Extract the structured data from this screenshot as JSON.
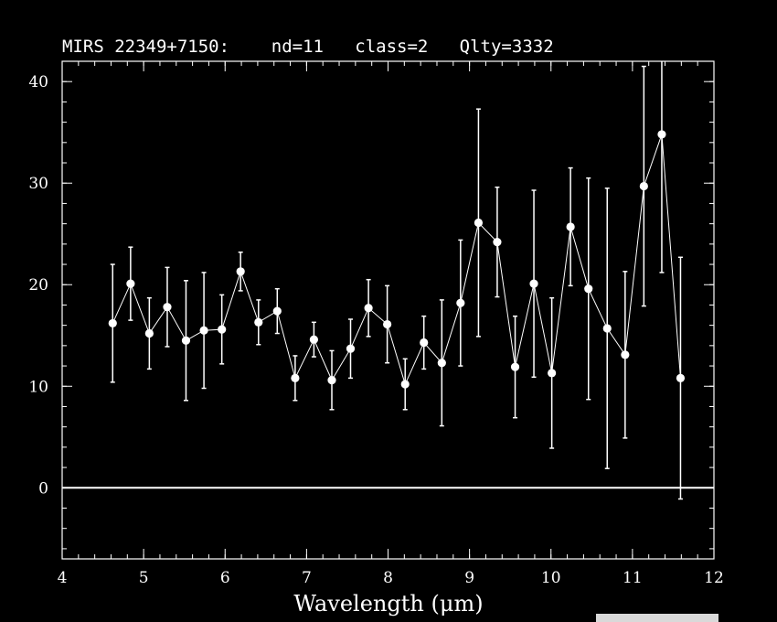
{
  "chart_data": {
    "type": "scatter",
    "title": "MIRS 22349+7150:    nd=11   class=2   Qlty=3332",
    "xlabel": "Wavelength (μm)",
    "ylabel": "",
    "xlim": [
      4,
      12
    ],
    "ylim": [
      -7,
      42
    ],
    "x_ticks": [
      4,
      5,
      6,
      7,
      8,
      9,
      10,
      11,
      12
    ],
    "y_ticks": [
      0,
      10,
      20,
      30,
      40
    ],
    "zero_line": 0,
    "grid": false,
    "legend": "none",
    "colors": {
      "background": "#000000",
      "foreground": "#ffffff"
    },
    "series": [
      {
        "x": [
          4.62,
          4.84,
          5.07,
          5.29,
          5.52,
          5.74,
          5.96,
          6.19,
          6.41,
          6.64,
          6.86,
          7.09,
          7.31,
          7.54,
          7.76,
          7.99,
          8.21,
          8.44,
          8.66,
          8.89,
          9.11,
          9.34,
          9.56,
          9.79,
          10.01,
          10.24,
          10.46,
          10.69,
          10.91,
          11.14,
          11.36,
          11.59
        ],
        "y": [
          16.2,
          20.1,
          15.2,
          17.8,
          14.5,
          15.5,
          15.6,
          21.3,
          16.3,
          17.4,
          10.8,
          14.6,
          10.6,
          13.7,
          17.7,
          16.1,
          10.2,
          14.3,
          12.3,
          18.2,
          26.1,
          24.2,
          11.9,
          20.1,
          11.3,
          25.7,
          19.6,
          15.7,
          13.1,
          29.7,
          34.8,
          10.8
        ],
        "yerr": [
          5.8,
          3.6,
          3.5,
          3.9,
          5.9,
          5.7,
          3.4,
          1.9,
          2.2,
          2.2,
          2.2,
          1.7,
          2.9,
          2.9,
          2.8,
          3.8,
          2.5,
          2.6,
          6.2,
          6.2,
          11.2,
          5.4,
          5.0,
          9.2,
          7.4,
          5.8,
          10.9,
          13.8,
          8.2,
          11.8,
          13.6,
          11.9
        ]
      }
    ]
  }
}
